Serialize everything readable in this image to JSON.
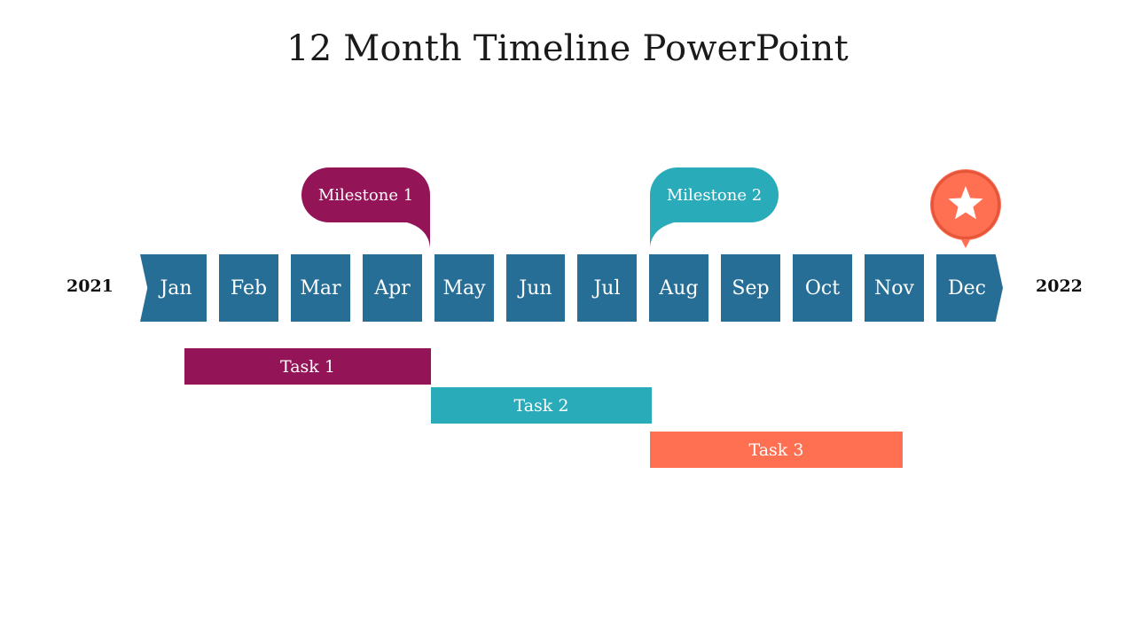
{
  "slide": {
    "title": "12 Month Timeline PowerPoint",
    "year_start": "2021",
    "year_end": "2022",
    "months": [
      "Jan",
      "Feb",
      "Mar",
      "Apr",
      "May",
      "Jun",
      "Jul",
      "Aug",
      "Sep",
      "Oct",
      "Nov",
      "Dec"
    ],
    "milestones": [
      {
        "label": "Milestone  1",
        "color": "#941458"
      },
      {
        "label": "Milestone  2",
        "color": "#2aabb9"
      }
    ],
    "tasks": [
      {
        "label": "Task 1",
        "color": "#941458"
      },
      {
        "label": "Task 2",
        "color": "#2aabb9"
      },
      {
        "label": "Task 3",
        "color": "#ff6f52"
      }
    ],
    "end_marker": {
      "icon": "star-icon",
      "color": "#ff6f52"
    },
    "month_color": "#276e96"
  }
}
